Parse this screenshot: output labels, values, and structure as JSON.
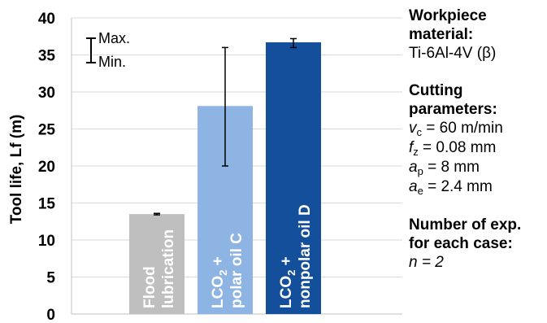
{
  "chart_data": {
    "type": "bar",
    "ylabel": "Tool life, Lf (m)",
    "ylim": [
      0,
      40
    ],
    "yticks": [
      "0",
      "5",
      "10",
      "15",
      "20",
      "25",
      "30",
      "35",
      "40"
    ],
    "grid": true,
    "categories": [
      {
        "lines": [
          "Flood",
          "lubrication"
        ]
      },
      {
        "lines": [
          "LCO",
          "2",
          " +",
          "polar oil C"
        ]
      },
      {
        "lines": [
          "LCO",
          "2",
          " +",
          "nonpolar oil D"
        ]
      }
    ],
    "values": [
      13.5,
      28.1,
      36.7
    ],
    "error_min": [
      13.4,
      20.0,
      36.0
    ],
    "error_max": [
      13.6,
      36.0,
      37.2
    ],
    "colors": [
      "#bfbfbf",
      "#8db4e2",
      "#134f9a"
    ],
    "legend": {
      "max": "Max.",
      "min": "Min."
    }
  },
  "info": {
    "material_title_1": "Workpiece",
    "material_title_2": "material:",
    "material_value": "Ti-6Al-4V (β)",
    "params_title_1": "Cutting",
    "params_title_2": "parameters:",
    "params": [
      {
        "sym": "v",
        "sub": "c",
        "rest": " = 60 m/min"
      },
      {
        "sym": "f",
        "sub": "z",
        "rest": " = 0.08 mm"
      },
      {
        "sym": "a",
        "sub": "p",
        "rest": " = 8 mm"
      },
      {
        "sym": "a",
        "sub": "e",
        "rest": " = 2.4 mm"
      }
    ],
    "exp_title_1": "Number of exp.",
    "exp_title_2": "for each case:",
    "exp_value": "n = 2"
  }
}
